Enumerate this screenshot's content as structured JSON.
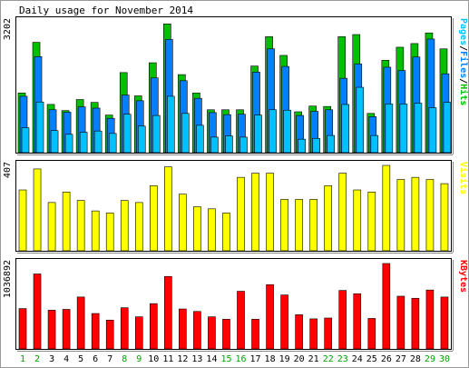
{
  "chart_data": {
    "type": "bar",
    "title": "Daily usage for November 2014",
    "categories": [
      "1",
      "2",
      "3",
      "4",
      "5",
      "6",
      "7",
      "8",
      "9",
      "10",
      "11",
      "12",
      "13",
      "14",
      "15",
      "16",
      "17",
      "18",
      "19",
      "20",
      "21",
      "22",
      "23",
      "24",
      "25",
      "26",
      "27",
      "28",
      "29",
      "30"
    ],
    "weekend_days": [
      "1",
      "2",
      "8",
      "9",
      "15",
      "16",
      "22",
      "23",
      "29",
      "30"
    ],
    "colors": {
      "background": "#ffffff",
      "frame": "#000000",
      "hits": "#00c000",
      "files": "#0080ff",
      "pages": "#00c0ff",
      "visits": "#ffff00",
      "kbytes": "#ff0000",
      "weekday_label": "#000000",
      "weekend_label": "#00a000"
    },
    "panels": [
      {
        "id": "hits-files-pages",
        "axis_max_label": "3202",
        "ylim": [
          0,
          3202
        ],
        "legend": [
          {
            "text": "Pages",
            "color": "#00c0ff"
          },
          {
            "text": "/",
            "color": "#000000"
          },
          {
            "text": "Files",
            "color": "#0080ff"
          },
          {
            "text": "/",
            "color": "#000000"
          },
          {
            "text": "Hits",
            "color": "#00c000"
          }
        ],
        "series": [
          {
            "name": "Hits",
            "color": "#00c000",
            "values": [
              1460,
              2700,
              1180,
              1030,
              1300,
              1230,
              920,
              1960,
              1390,
              2200,
              3150,
              1910,
              1460,
              1050,
              1050,
              1050,
              2120,
              2840,
              2380,
              1000,
              1140,
              1130,
              2840,
              2890,
              960,
              2260,
              2580,
              2670,
              2930,
              2540
            ]
          },
          {
            "name": "Files",
            "color": "#0080ff",
            "values": [
              1380,
              2350,
              1050,
              990,
              1120,
              1090,
              840,
              1410,
              1270,
              1830,
              2770,
              1760,
              1330,
              980,
              930,
              940,
              1970,
              2540,
              2110,
              910,
              1010,
              1050,
              1820,
              2170,
              880,
              2090,
              2010,
              2340,
              2780,
              1930
            ]
          },
          {
            "name": "Pages",
            "color": "#00c0ff",
            "values": [
              610,
              1240,
              540,
              450,
              500,
              530,
              470,
              940,
              650,
              910,
              1380,
              960,
              670,
              380,
              410,
              380,
              920,
              1050,
              1040,
              330,
              350,
              420,
              1180,
              1600,
              420,
              1190,
              1190,
              1210,
              1100,
              1230
            ]
          }
        ]
      },
      {
        "id": "visits",
        "axis_max_label": "407",
        "ylim": [
          0,
          407
        ],
        "legend": [
          {
            "text": "Visits",
            "color": "#ffff00"
          }
        ],
        "series": [
          {
            "name": "Visits",
            "color": "#ffff00",
            "values": [
              290,
              390,
              230,
              280,
              240,
              190,
              180,
              240,
              230,
              310,
              400,
              270,
              210,
              200,
              180,
              350,
              370,
              370,
              245,
              245,
              245,
              310,
              370,
              290,
              280,
              407,
              340,
              350,
              340,
              320
            ]
          }
        ]
      },
      {
        "id": "kbytes",
        "axis_max_label": "1036892",
        "ylim": [
          0,
          1036892
        ],
        "legend": [
          {
            "text": "KBytes",
            "color": "#ff0000"
          }
        ],
        "series": [
          {
            "name": "KBytes",
            "color": "#ff0000",
            "values": [
              490000,
              910000,
              470000,
              480000,
              630000,
              430000,
              350000,
              500000,
              390000,
              550000,
              880000,
              485000,
              455000,
              390000,
              360000,
              700000,
              360000,
              780000,
              655000,
              415000,
              365000,
              375000,
              710000,
              670000,
              370000,
              1036892,
              640000,
              615000,
              715000,
              630000
            ]
          }
        ]
      }
    ]
  }
}
